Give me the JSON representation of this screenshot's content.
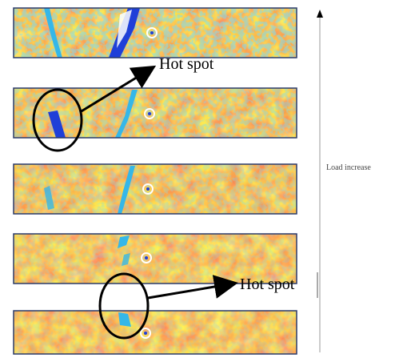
{
  "figure": {
    "annotations": {
      "hot_spot_top": "Hot spot",
      "hot_spot_bottom": "Hot spot"
    },
    "axis_label": "Load increase",
    "colors": {
      "hot": "#e8421f",
      "warm": "#f7a21a",
      "mid": "#f5e23c",
      "cool": "#35b7e8",
      "crack": "#1f3fd8",
      "background": "#ffffff",
      "annotation": "#000000"
    },
    "panel_count": 5
  }
}
